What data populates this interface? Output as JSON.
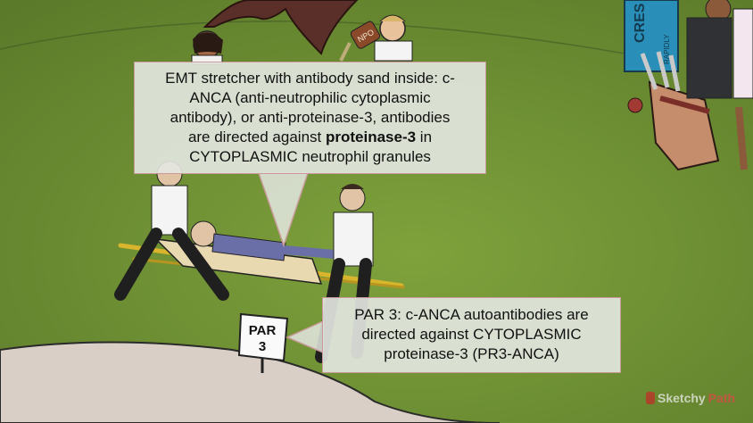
{
  "main_callout": {
    "line1": "EMT stretcher with antibody sand inside: c-",
    "line2": "ANCA (anti-neutrophilic cytoplasmic",
    "line3": "antibody), or anti-proteinase-3, antibodies",
    "line4_pre": "are directed against ",
    "line4_bold": "proteinase-3",
    "line4_post": " in",
    "line5": "CYTOPLASMIC neutrophil granules"
  },
  "par_callout": {
    "line1": "PAR 3: c-ANCA autoantibodies are",
    "line2": "directed against CYTOPLASMIC",
    "line3": "proteinase-3 (PR3-ANCA)"
  },
  "sign": {
    "line1": "PAR",
    "line2": "3"
  },
  "banner": {
    "text": "CRES",
    "sub": "RAPIDLY"
  },
  "bottle": {
    "label": "NPO"
  },
  "watermark": {
    "brand": "Sketchy",
    "accent": "Path"
  },
  "colors": {
    "grass": "#6f8f33",
    "sand": "#d9cfc6",
    "callout_bg": "#e4e8e2",
    "callout_border": "#c99a9a",
    "banner": "#2a8fb8"
  }
}
